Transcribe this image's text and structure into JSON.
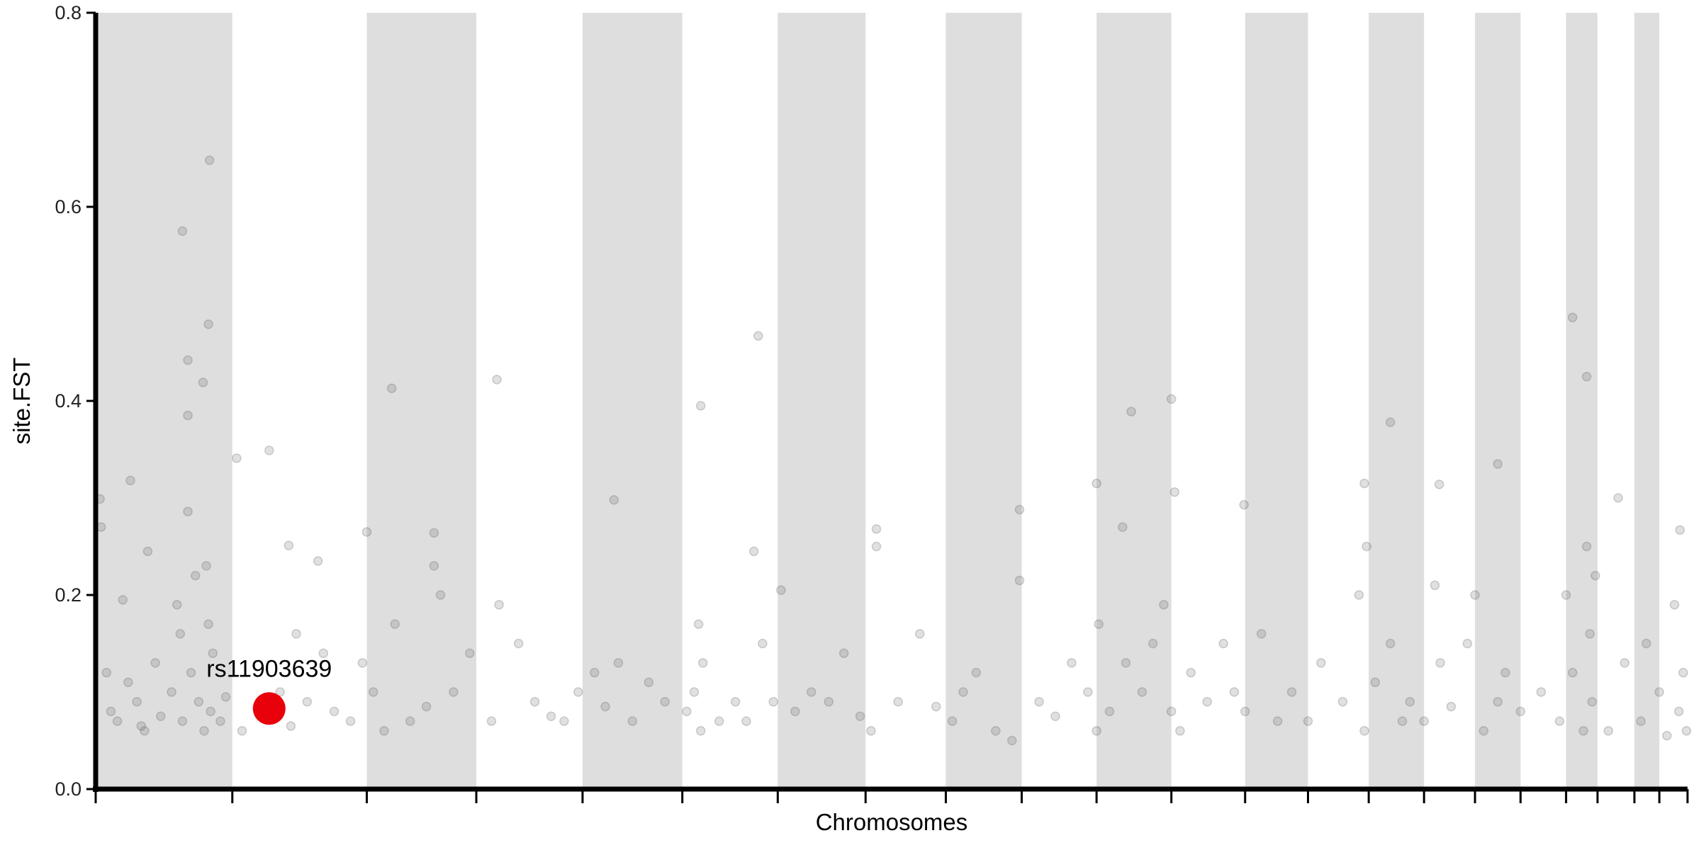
{
  "chart_data": {
    "type": "scatter",
    "xlabel": "Chromosomes",
    "ylabel": "site.FST",
    "xlim": [
      0,
      1468
    ],
    "xticks": [
      0,
      126,
      250,
      351,
      449,
      541,
      629,
      710,
      784,
      854,
      923,
      992,
      1060,
      1118,
      1174,
      1225,
      1272,
      1314,
      1356,
      1385,
      1419,
      1442,
      1468
    ],
    "ylim": [
      0,
      0.8
    ],
    "yticks": [
      {
        "value": 0,
        "label": "0.0"
      },
      0.2,
      0.4,
      0.6,
      0.8
    ],
    "band_color": "#dedede",
    "series": [
      {
        "color": "#555555",
        "x": [
          4,
          32,
          80,
          85,
          99,
          85,
          104,
          105,
          130,
          160,
          178,
          273,
          370,
          611,
          558,
          478,
          955,
          992,
          1362,
          1375,
          1194,
          1239,
          1293,
          852,
          1059,
          1404,
          1461,
          85,
          312,
          250,
          720,
          923,
          947,
          995,
          1170,
          5,
          10,
          14,
          20,
          25,
          30,
          38,
          42,
          45,
          48,
          55,
          60,
          70,
          75,
          78,
          80,
          88,
          92,
          95,
          100,
          102,
          104,
          106,
          108,
          115,
          120,
          135,
          150,
          170,
          180,
          185,
          195,
          205,
          210,
          220,
          235,
          246,
          256,
          266,
          276,
          290,
          305,
          312,
          318,
          330,
          345,
          365,
          372,
          390,
          405,
          420,
          432,
          445,
          460,
          470,
          482,
          495,
          510,
          525,
          545,
          552,
          556,
          558,
          560,
          575,
          590,
          600,
          607,
          615,
          625,
          632,
          645,
          660,
          676,
          690,
          705,
          715,
          720,
          740,
          760,
          775,
          790,
          800,
          812,
          830,
          845,
          852,
          870,
          885,
          900,
          915,
          923,
          925,
          935,
          950,
          965,
          975,
          985,
          992,
          1000,
          1010,
          1025,
          1040,
          1050,
          1060,
          1075,
          1090,
          1103,
          1118,
          1130,
          1150,
          1165,
          1170,
          1172,
          1180,
          1194,
          1205,
          1212,
          1225,
          1235,
          1240,
          1250,
          1265,
          1272,
          1280,
          1293,
          1300,
          1314,
          1333,
          1350,
          1356,
          1362,
          1372,
          1375,
          1378,
          1380,
          1383,
          1395,
          1410,
          1425,
          1430,
          1442,
          1449,
          1456,
          1460,
          1464,
          1467
        ],
        "values": [
          0.299,
          0.318,
          0.575,
          0.442,
          0.419,
          0.385,
          0.479,
          0.648,
          0.341,
          0.349,
          0.251,
          0.413,
          0.422,
          0.467,
          0.395,
          0.298,
          0.389,
          0.402,
          0.486,
          0.425,
          0.378,
          0.314,
          0.335,
          0.288,
          0.293,
          0.3,
          0.267,
          0.286,
          0.264,
          0.265,
          0.268,
          0.315,
          0.27,
          0.306,
          0.315,
          0.27,
          0.12,
          0.08,
          0.07,
          0.195,
          0.11,
          0.09,
          0.065,
          0.06,
          0.245,
          0.13,
          0.075,
          0.1,
          0.19,
          0.16,
          0.07,
          0.12,
          0.22,
          0.09,
          0.06,
          0.23,
          0.17,
          0.08,
          0.14,
          0.07,
          0.095,
          0.06,
          0.08,
          0.1,
          0.065,
          0.16,
          0.09,
          0.235,
          0.14,
          0.08,
          0.07,
          0.13,
          0.1,
          0.06,
          0.17,
          0.07,
          0.085,
          0.23,
          0.2,
          0.1,
          0.14,
          0.07,
          0.19,
          0.15,
          0.09,
          0.075,
          0.07,
          0.1,
          0.12,
          0.085,
          0.13,
          0.07,
          0.11,
          0.09,
          0.08,
          0.1,
          0.17,
          0.06,
          0.13,
          0.07,
          0.09,
          0.07,
          0.245,
          0.15,
          0.09,
          0.205,
          0.08,
          0.1,
          0.09,
          0.14,
          0.075,
          0.06,
          0.25,
          0.09,
          0.16,
          0.085,
          0.07,
          0.1,
          0.12,
          0.06,
          0.05,
          0.215,
          0.09,
          0.075,
          0.13,
          0.1,
          0.06,
          0.17,
          0.08,
          0.13,
          0.1,
          0.15,
          0.19,
          0.08,
          0.06,
          0.12,
          0.09,
          0.15,
          0.1,
          0.08,
          0.16,
          0.07,
          0.1,
          0.07,
          0.13,
          0.09,
          0.2,
          0.06,
          0.25,
          0.11,
          0.15,
          0.07,
          0.09,
          0.07,
          0.21,
          0.13,
          0.085,
          0.15,
          0.2,
          0.06,
          0.09,
          0.12,
          0.08,
          0.1,
          0.07,
          0.2,
          0.12,
          0.06,
          0.25,
          0.16,
          0.09,
          0.22,
          0.06,
          0.13,
          0.07,
          0.15,
          0.1,
          0.055,
          0.19,
          0.08,
          0.12,
          0.06
        ]
      }
    ],
    "highlight": {
      "x": 160,
      "value": 0.083,
      "label": "rs11903639",
      "color": "#e8000b"
    }
  }
}
